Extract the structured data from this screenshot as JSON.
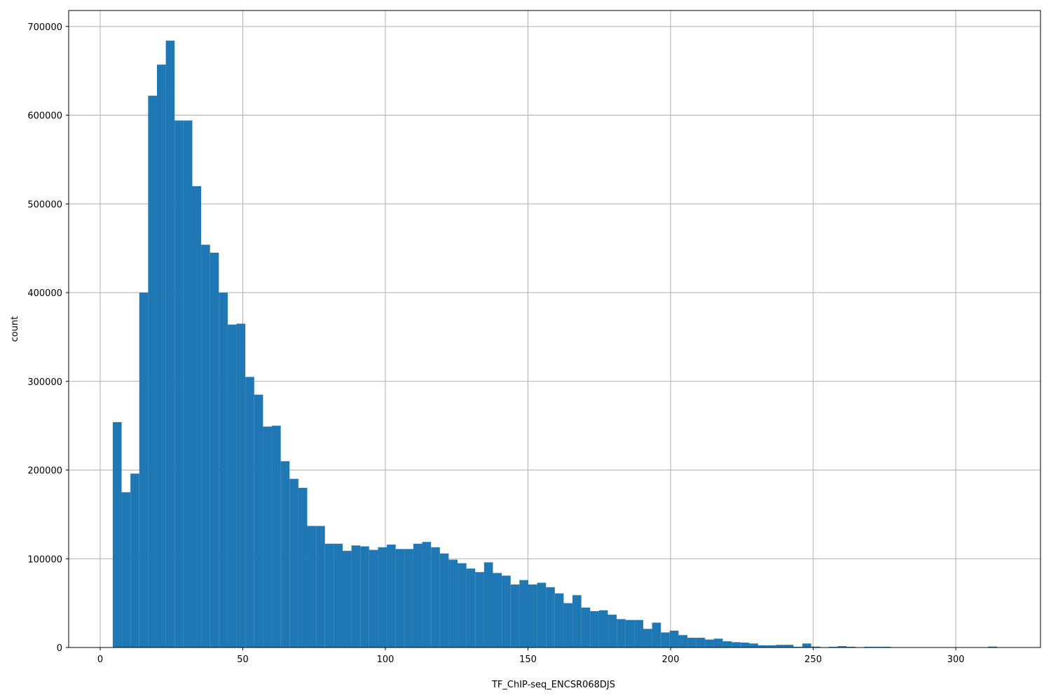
{
  "chart_data": {
    "type": "histogram",
    "xlabel": "TF_ChIP-seq_ENCSR068DJS",
    "ylabel": "count",
    "color": "#1f77b4",
    "grid": true,
    "bins": [
      4.4,
      7.5,
      10.6,
      13.7,
      16.8,
      19.9,
      23.0,
      26.1,
      29.2,
      32.3,
      35.4,
      38.5,
      41.6,
      44.7,
      47.8,
      50.9,
      54.0,
      57.1,
      60.2,
      63.3,
      66.4,
      69.5,
      72.6,
      75.7,
      78.8,
      81.9,
      85.0,
      88.1,
      91.2,
      94.3,
      97.4,
      100.5,
      103.6,
      106.7,
      109.8,
      112.9,
      116.0,
      119.1,
      122.2,
      125.3,
      128.4,
      131.5,
      134.6,
      137.7,
      140.8,
      143.9,
      147.0,
      150.1,
      153.2,
      156.3,
      159.4,
      162.5,
      165.6,
      168.7,
      171.8,
      174.9,
      178.0,
      181.1,
      184.2,
      187.3,
      190.4,
      193.5,
      196.6,
      199.7,
      202.8,
      205.9,
      209.0,
      212.1,
      215.2,
      218.3,
      221.4,
      224.5,
      227.6,
      230.7,
      233.8,
      236.9,
      240.0,
      243.1,
      246.2,
      249.3,
      252.4,
      255.5,
      258.6,
      261.7,
      264.8,
      267.9,
      271.0,
      274.1,
      277.2,
      280.3,
      283.4,
      286.5,
      289.6,
      292.7,
      295.8,
      298.9,
      302.0,
      305.1,
      308.2,
      311.3,
      314.4
    ],
    "values": [
      254000,
      175000,
      196000,
      400000,
      622000,
      657000,
      684000,
      594000,
      594000,
      520000,
      454000,
      445000,
      400000,
      364000,
      365000,
      305000,
      285000,
      249000,
      250000,
      210000,
      190000,
      180000,
      137000,
      137000,
      117000,
      117000,
      109000,
      115000,
      114000,
      110000,
      113000,
      116000,
      111000,
      111000,
      117000,
      119000,
      113000,
      106000,
      99000,
      95000,
      89000,
      85000,
      96000,
      84000,
      81000,
      71000,
      76000,
      71000,
      73000,
      68000,
      61000,
      50000,
      59000,
      45000,
      41000,
      42000,
      37000,
      32000,
      31000,
      31000,
      21000,
      28000,
      17000,
      19000,
      14000,
      11000,
      11000,
      9000,
      10000,
      7000,
      6000,
      5500,
      4500,
      2500,
      2500,
      3000,
      3000,
      800,
      4500,
      1000,
      300,
      800,
      1500,
      800,
      0,
      800,
      800,
      800,
      0,
      0,
      0,
      0,
      0,
      0,
      0,
      0,
      0,
      0,
      0,
      1000
    ],
    "xlim": [
      -11.06,
      329.7
    ],
    "ylim": [
      0,
      718000
    ],
    "xticks": [
      0,
      50,
      100,
      150,
      200,
      250,
      300
    ],
    "yticks": [
      0,
      100000,
      200000,
      300000,
      400000,
      500000,
      600000,
      700000
    ]
  }
}
